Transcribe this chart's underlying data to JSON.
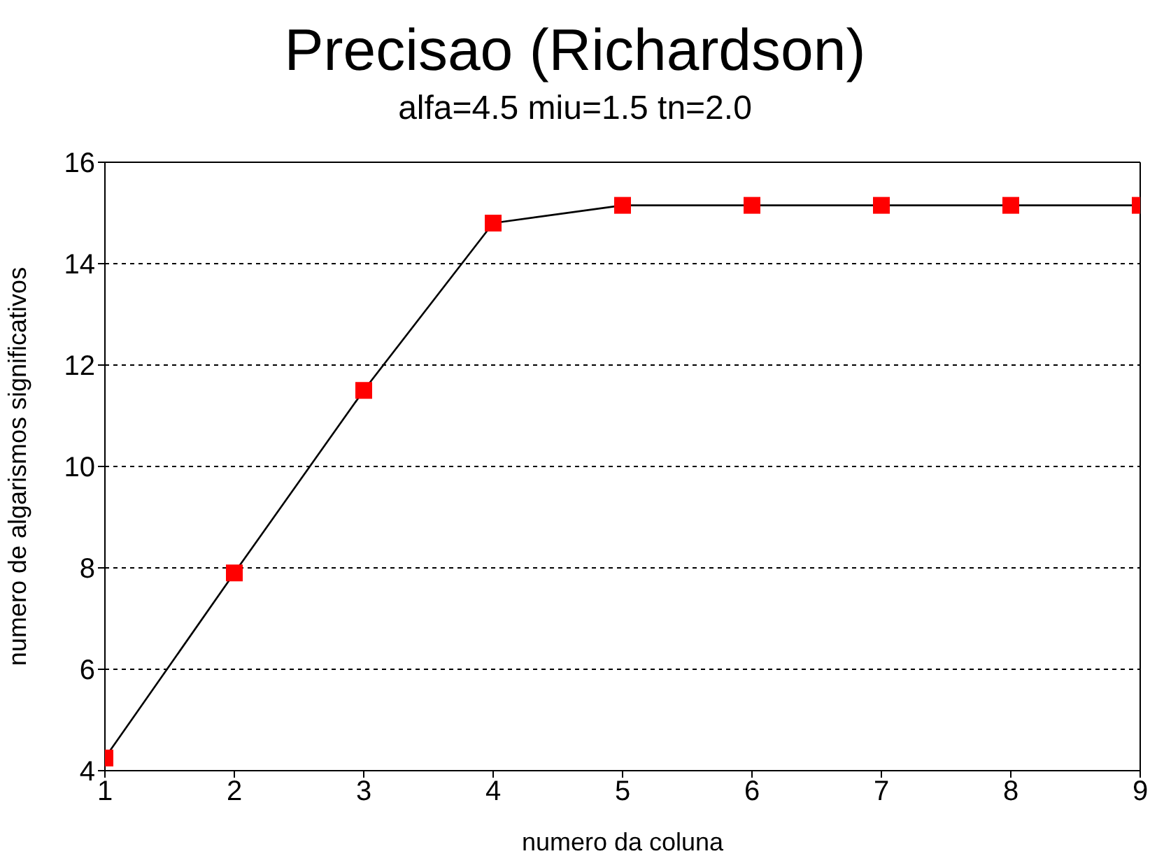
{
  "chart_data": {
    "type": "line",
    "title": "Precisao (Richardson)",
    "subtitle": "alfa=4.5 miu=1.5 tn=2.0",
    "xlabel": "numero da coluna",
    "ylabel": "numero de algarismos significativos",
    "x": [
      1,
      2,
      3,
      4,
      5,
      6,
      7,
      8,
      9
    ],
    "series": [
      {
        "color": "#ff0000",
        "values": [
          4.25,
          7.9,
          11.5,
          14.8,
          15.15,
          15.15,
          15.15,
          15.15,
          15.15
        ]
      }
    ],
    "xlim": [
      1,
      9
    ],
    "xticks": [
      1,
      2,
      3,
      4,
      5,
      6,
      7,
      8,
      9
    ],
    "ylim": [
      4,
      16
    ],
    "yticks": [
      4,
      6,
      8,
      10,
      12,
      14,
      16
    ],
    "grid": "y",
    "marker": "square",
    "line_style": "solid",
    "legend": false
  }
}
